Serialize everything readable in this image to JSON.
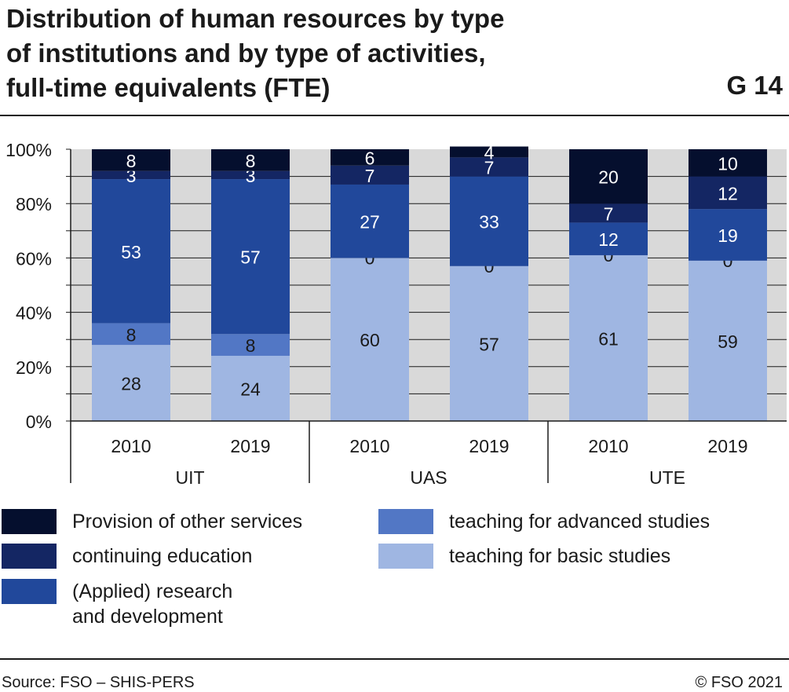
{
  "title_lines": [
    "Distribution of human resources by type",
    "of institutions and  by type of activities,",
    "full-time equivalents (FTE)"
  ],
  "chart_code": "G 14",
  "source": "Source: FSO – SHIS-PERS",
  "copyright": "© FSO 2021",
  "colors": {
    "provision": "#050f2e",
    "continuing": "#142663",
    "research": "#21489b",
    "advanced": "#5277c5",
    "basic": "#9fb6e2",
    "plot_bg": "#d9d9d9"
  },
  "chart_data": {
    "type": "bar",
    "stacked": true,
    "ylim": [
      0,
      100
    ],
    "yticks": [
      "0%",
      "20%",
      "40%",
      "60%",
      "80%",
      "100%"
    ],
    "categories": [
      "2010",
      "2019",
      "2010",
      "2019",
      "2010",
      "2019"
    ],
    "groups": [
      {
        "label": "UIT",
        "categories": [
          "2010",
          "2019"
        ]
      },
      {
        "label": "UAS",
        "categories": [
          "2010",
          "2019"
        ]
      },
      {
        "label": "UTE",
        "categories": [
          "2010",
          "2019"
        ]
      }
    ],
    "series": [
      {
        "name": "teaching for basic studies",
        "color_key": "basic",
        "values": [
          28,
          24,
          60,
          57,
          61,
          59
        ]
      },
      {
        "name": "teaching for advanced studies",
        "color_key": "advanced",
        "values": [
          8,
          8,
          0,
          0,
          0,
          0
        ]
      },
      {
        "name": "(Applied) research and development",
        "color_key": "research",
        "values": [
          53,
          57,
          27,
          33,
          12,
          19
        ]
      },
      {
        "name": "continuing education",
        "color_key": "continuing",
        "values": [
          3,
          3,
          7,
          7,
          7,
          12
        ]
      },
      {
        "name": "Provision of other services",
        "color_key": "provision",
        "values": [
          8,
          8,
          6,
          4,
          20,
          10
        ]
      }
    ]
  },
  "legend": [
    {
      "label": "Provision of other services",
      "color_key": "provision"
    },
    {
      "label": "continuing education",
      "color_key": "continuing"
    },
    {
      "label": "(Applied) research\nand development",
      "color_key": "research"
    },
    {
      "label": "teaching for advanced studies",
      "color_key": "advanced"
    },
    {
      "label": "teaching for basic studies",
      "color_key": "basic"
    }
  ]
}
